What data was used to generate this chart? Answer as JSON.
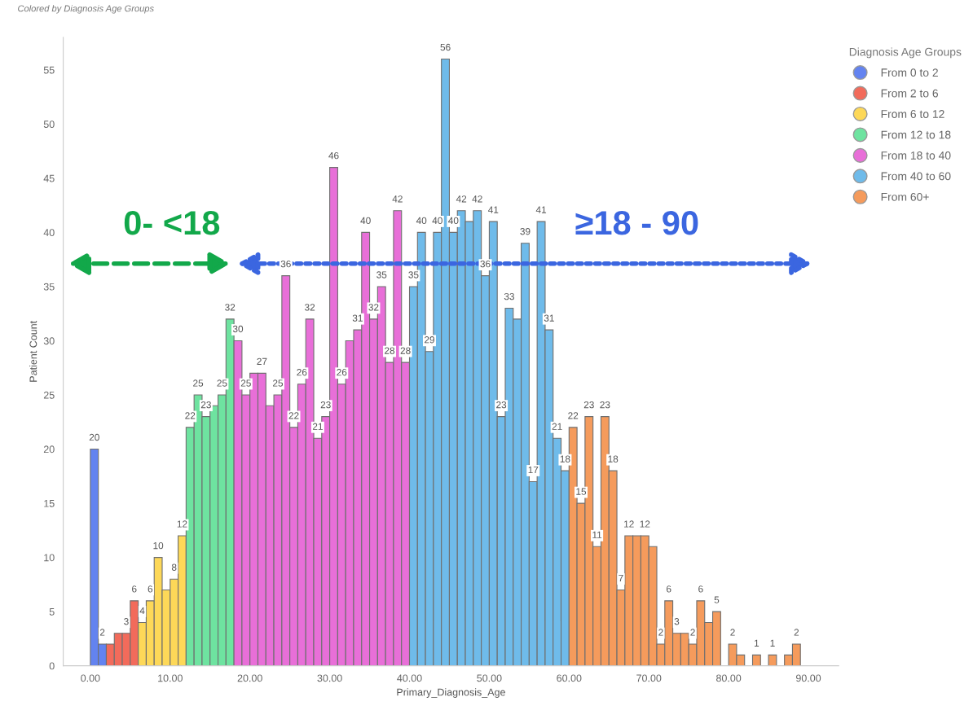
{
  "chart_data": {
    "type": "histogram",
    "subtitle": "Colored by Diagnosis Age Groups",
    "xlabel": "Primary_Diagnosis_Age",
    "ylabel": "Patient Count",
    "legend_title": "Diagnosis Age Groups",
    "bins": [
      0,
      1,
      2,
      3,
      4,
      5,
      6,
      7,
      8,
      9,
      10,
      11,
      12,
      13,
      14,
      15,
      16,
      17,
      18,
      19,
      20,
      21,
      22,
      23,
      24,
      25,
      26,
      27,
      28,
      29,
      30,
      31,
      32,
      33,
      34,
      35,
      36,
      37,
      38,
      39,
      40,
      41,
      42,
      43,
      44,
      45,
      46,
      47,
      48,
      49,
      50,
      51,
      52,
      53,
      54,
      55,
      56,
      57,
      58,
      59,
      60,
      61,
      62,
      63,
      64,
      65,
      66,
      67,
      68,
      69,
      70,
      71,
      72,
      73,
      74,
      75,
      76,
      77,
      78,
      79,
      80,
      81,
      82,
      83,
      84,
      85,
      86,
      87,
      88,
      89
    ],
    "series": [
      {
        "name": "From 0 to 2",
        "color": "#6383f0",
        "values": [
          20,
          2,
          null,
          null,
          null,
          null,
          null,
          null,
          null,
          null,
          null,
          null,
          null,
          null,
          null,
          null,
          null,
          null,
          null,
          null,
          null,
          null,
          null,
          null,
          null,
          null,
          null,
          null,
          null,
          null,
          null,
          null,
          null,
          null,
          null,
          null,
          null,
          null,
          null,
          null,
          null,
          null,
          null,
          null,
          null,
          null,
          null,
          null,
          null,
          null,
          null,
          null,
          null,
          null,
          null,
          null,
          null,
          null,
          null,
          null,
          null,
          null,
          null,
          null,
          null,
          null,
          null,
          null,
          null,
          null,
          null,
          null,
          null,
          null,
          null,
          null,
          null,
          null,
          null,
          null,
          null,
          null,
          null,
          null,
          null,
          null,
          null,
          null,
          null
        ],
        "value_labels": [
          "20",
          "2",
          null,
          null,
          null,
          null,
          null,
          null,
          null,
          null,
          null,
          null,
          null,
          null,
          null,
          null,
          null,
          null,
          null,
          null,
          null,
          null,
          null,
          null,
          null,
          null,
          null,
          null,
          null,
          null,
          null,
          null,
          null,
          null,
          null,
          null,
          null,
          null,
          null,
          null,
          null,
          null,
          null,
          null,
          null,
          null,
          null,
          null,
          null,
          null,
          null,
          null,
          null,
          null,
          null,
          null,
          null,
          null,
          null,
          null,
          null,
          null,
          null,
          null,
          null,
          null,
          null,
          null,
          null,
          null,
          null,
          null,
          null,
          null,
          null,
          null,
          null,
          null,
          null,
          null,
          null,
          null,
          null,
          null,
          null,
          null,
          null,
          null,
          null
        ]
      },
      {
        "name": "From 2 to 6",
        "color": "#f26b5b",
        "values": [
          null,
          null,
          2,
          3,
          3,
          6,
          null,
          null,
          null,
          null,
          null,
          null,
          null,
          null,
          null,
          null,
          null,
          null,
          null,
          null,
          null,
          null,
          null,
          null,
          null,
          null,
          null,
          null,
          null,
          null,
          null,
          null,
          null,
          null,
          null,
          null,
          null,
          null,
          null,
          null,
          null,
          null,
          null,
          null,
          null,
          null,
          null,
          null,
          null,
          null,
          null,
          null,
          null,
          null,
          null,
          null,
          null,
          null,
          null,
          null,
          null,
          null,
          null,
          null,
          null,
          null,
          null,
          null,
          null,
          null,
          null,
          null,
          null,
          null,
          null,
          null,
          null,
          null,
          null,
          null,
          null,
          null,
          null,
          null,
          null,
          null,
          null,
          null,
          null
        ],
        "value_labels": [
          null,
          null,
          null,
          null,
          "3",
          "6",
          null,
          null,
          null,
          null,
          null,
          null,
          null,
          null,
          null,
          null,
          null,
          null,
          null,
          null,
          null,
          null,
          null,
          null,
          null,
          null,
          null,
          null,
          null,
          null,
          null,
          null,
          null,
          null,
          null,
          null,
          null,
          null,
          null,
          null,
          null,
          null,
          null,
          null,
          null,
          null,
          null,
          null,
          null,
          null,
          null,
          null,
          null,
          null,
          null,
          null,
          null,
          null,
          null,
          null,
          null,
          null,
          null,
          null,
          null,
          null,
          null,
          null,
          null,
          null,
          null,
          null,
          null,
          null,
          null,
          null,
          null,
          null,
          null,
          null,
          null,
          null,
          null,
          null,
          null,
          null,
          null,
          null,
          null
        ]
      },
      {
        "name": "From 6 to 12",
        "color": "#fdd858",
        "values": [
          null,
          null,
          null,
          null,
          null,
          null,
          4,
          6,
          10,
          7,
          8,
          12,
          null,
          null,
          null,
          null,
          null,
          null,
          null,
          null,
          null,
          null,
          null,
          null,
          null,
          null,
          null,
          null,
          null,
          null,
          null,
          null,
          null,
          null,
          null,
          null,
          null,
          null,
          null,
          null,
          null,
          null,
          null,
          null,
          null,
          null,
          null,
          null,
          null,
          null,
          null,
          null,
          null,
          null,
          null,
          null,
          null,
          null,
          null,
          null,
          null,
          null,
          null,
          null,
          null,
          null,
          null,
          null,
          null,
          null,
          null,
          null,
          null,
          null,
          null,
          null,
          null,
          null,
          null,
          null,
          null,
          null,
          null,
          null,
          null,
          null,
          null,
          null,
          null
        ],
        "value_labels": [
          null,
          null,
          null,
          null,
          null,
          null,
          "4",
          "6",
          "10",
          null,
          "8",
          "12",
          null,
          null,
          null,
          null,
          null,
          null,
          null,
          null,
          null,
          null,
          null,
          null,
          null,
          null,
          null,
          null,
          null,
          null,
          null,
          null,
          null,
          null,
          null,
          null,
          null,
          null,
          null,
          null,
          null,
          null,
          null,
          null,
          null,
          null,
          null,
          null,
          null,
          null,
          null,
          null,
          null,
          null,
          null,
          null,
          null,
          null,
          null,
          null,
          null,
          null,
          null,
          null,
          null,
          null,
          null,
          null,
          null,
          null,
          null,
          null,
          null,
          null,
          null,
          null,
          null,
          null,
          null,
          null,
          null,
          null,
          null,
          null,
          null,
          null,
          null,
          null,
          null
        ]
      },
      {
        "name": "From 12 to 18",
        "color": "#6ee3a0",
        "values": [
          null,
          null,
          null,
          null,
          null,
          null,
          null,
          null,
          null,
          null,
          null,
          null,
          22,
          25,
          23,
          24,
          25,
          32,
          null,
          null,
          null,
          null,
          null,
          null,
          null,
          null,
          null,
          null,
          null,
          null,
          null,
          null,
          null,
          null,
          null,
          null,
          null,
          null,
          null,
          null,
          null,
          null,
          null,
          null,
          null,
          null,
          null,
          null,
          null,
          null,
          null,
          null,
          null,
          null,
          null,
          null,
          null,
          null,
          null,
          null,
          null,
          null,
          null,
          null,
          null,
          null,
          null,
          null,
          null,
          null,
          null,
          null,
          null,
          null,
          null,
          null,
          null,
          null,
          null,
          null,
          null,
          null,
          null,
          null,
          null,
          null,
          null,
          null,
          null
        ],
        "value_labels": [
          null,
          null,
          null,
          null,
          null,
          null,
          null,
          null,
          null,
          null,
          null,
          null,
          "22",
          "25",
          "23",
          null,
          "25",
          "32",
          null,
          null,
          null,
          null,
          null,
          null,
          null,
          null,
          null,
          null,
          null,
          null,
          null,
          null,
          null,
          null,
          null,
          null,
          null,
          null,
          null,
          null,
          null,
          null,
          null,
          null,
          null,
          null,
          null,
          null,
          null,
          null,
          null,
          null,
          null,
          null,
          null,
          null,
          null,
          null,
          null,
          null,
          null,
          null,
          null,
          null,
          null,
          null,
          null,
          null,
          null,
          null,
          null,
          null,
          null,
          null,
          null,
          null,
          null,
          null,
          null,
          null,
          null,
          null,
          null,
          null,
          null,
          null,
          null,
          null,
          null
        ]
      },
      {
        "name": "From 18 to 40",
        "color": "#e86fd8",
        "values": [
          null,
          null,
          null,
          null,
          null,
          null,
          null,
          null,
          null,
          null,
          null,
          null,
          null,
          null,
          null,
          null,
          null,
          null,
          30,
          25,
          27,
          27,
          24,
          25,
          36,
          22,
          26,
          32,
          21,
          23,
          46,
          26,
          30,
          31,
          40,
          32,
          35,
          28,
          42,
          28,
          null,
          null,
          null,
          null,
          null,
          null,
          null,
          null,
          null,
          null,
          null,
          null,
          null,
          null,
          null,
          null,
          null,
          null,
          null,
          null,
          null,
          null,
          null,
          null,
          null,
          null,
          null,
          null,
          null,
          null,
          null,
          null,
          null,
          null,
          null,
          null,
          null,
          null,
          null,
          null,
          null,
          null,
          null,
          null,
          null,
          null,
          null,
          null,
          null
        ],
        "value_labels": [
          null,
          null,
          null,
          null,
          null,
          null,
          null,
          null,
          null,
          null,
          null,
          null,
          null,
          null,
          null,
          null,
          null,
          null,
          "30",
          "25",
          null,
          "27",
          null,
          "25",
          "36",
          "22",
          "26",
          "32",
          "21",
          "23",
          "46",
          "26",
          null,
          "31",
          "40",
          "32",
          "35",
          "28",
          "42",
          "28",
          null,
          null,
          null,
          null,
          null,
          null,
          null,
          null,
          null,
          null,
          null,
          null,
          null,
          null,
          null,
          null,
          null,
          null,
          null,
          null,
          null,
          null,
          null,
          null,
          null,
          null,
          null,
          null,
          null,
          null,
          null,
          null,
          null,
          null,
          null,
          null,
          null,
          null,
          null,
          null,
          null,
          null,
          null,
          null,
          null,
          null,
          null,
          null,
          null
        ]
      },
      {
        "name": "From 40 to 60",
        "color": "#6fbbea",
        "values": [
          null,
          null,
          null,
          null,
          null,
          null,
          null,
          null,
          null,
          null,
          null,
          null,
          null,
          null,
          null,
          null,
          null,
          null,
          null,
          null,
          null,
          null,
          null,
          null,
          null,
          null,
          null,
          null,
          null,
          null,
          null,
          null,
          null,
          null,
          null,
          null,
          null,
          null,
          null,
          null,
          35,
          40,
          29,
          40,
          56,
          40,
          42,
          41,
          42,
          36,
          41,
          23,
          33,
          32,
          39,
          17,
          41,
          31,
          21,
          18,
          null,
          null,
          null,
          null,
          null,
          null,
          null,
          null,
          null,
          null,
          null,
          null,
          null,
          null,
          null,
          null,
          null,
          null,
          null,
          null,
          null,
          null,
          null,
          null,
          null,
          null,
          null,
          null,
          null
        ],
        "value_labels": [
          null,
          null,
          null,
          null,
          null,
          null,
          null,
          null,
          null,
          null,
          null,
          null,
          null,
          null,
          null,
          null,
          null,
          null,
          null,
          null,
          null,
          null,
          null,
          null,
          null,
          null,
          null,
          null,
          null,
          null,
          null,
          null,
          null,
          null,
          null,
          null,
          null,
          null,
          null,
          null,
          "35",
          "40",
          "29",
          "40",
          "56",
          "40",
          "42",
          null,
          "42",
          "36",
          "41",
          "23",
          "33",
          null,
          "39",
          "17",
          "41",
          "31",
          "21",
          "18",
          null,
          null,
          null,
          null,
          null,
          null,
          null,
          null,
          null,
          null,
          null,
          null,
          null,
          null,
          null,
          null,
          null,
          null,
          null,
          null,
          null,
          null,
          null,
          null,
          null,
          null,
          null,
          null,
          null
        ]
      },
      {
        "name": "From 60+",
        "color": "#f59b5c",
        "values": [
          null,
          null,
          null,
          null,
          null,
          null,
          null,
          null,
          null,
          null,
          null,
          null,
          null,
          null,
          null,
          null,
          null,
          null,
          null,
          null,
          null,
          null,
          null,
          null,
          null,
          null,
          null,
          null,
          null,
          null,
          null,
          null,
          null,
          null,
          null,
          null,
          null,
          null,
          null,
          null,
          null,
          null,
          null,
          null,
          null,
          null,
          null,
          null,
          null,
          null,
          null,
          null,
          null,
          null,
          null,
          null,
          null,
          null,
          null,
          null,
          22,
          15,
          23,
          11,
          23,
          18,
          7,
          12,
          12,
          12,
          11,
          2,
          6,
          3,
          3,
          2,
          6,
          4,
          5,
          null,
          2,
          1,
          null,
          1,
          null,
          1,
          null,
          1,
          2
        ],
        "value_labels": [
          null,
          null,
          null,
          null,
          null,
          null,
          null,
          null,
          null,
          null,
          null,
          null,
          null,
          null,
          null,
          null,
          null,
          null,
          null,
          null,
          null,
          null,
          null,
          null,
          null,
          null,
          null,
          null,
          null,
          null,
          null,
          null,
          null,
          null,
          null,
          null,
          null,
          null,
          null,
          null,
          null,
          null,
          null,
          null,
          null,
          null,
          null,
          null,
          null,
          null,
          null,
          null,
          null,
          null,
          null,
          null,
          null,
          null,
          null,
          null,
          "22",
          "15",
          "23",
          "11",
          "23",
          "18",
          "7",
          "12",
          null,
          "12",
          null,
          "2",
          "6",
          "3",
          null,
          "2",
          "6",
          null,
          "5",
          null,
          "2",
          null,
          null,
          "1",
          null,
          "1",
          null,
          null,
          "2"
        ]
      }
    ],
    "annotations": [
      "0- <18",
      "≥18 - 90"
    ],
    "xlim": [
      -3.4,
      93.8
    ],
    "ylim": [
      0,
      58
    ],
    "xticks": [
      {
        "value": 0,
        "label": "0.00"
      },
      {
        "value": 10,
        "label": "10.00"
      },
      {
        "value": 20,
        "label": "20.00"
      },
      {
        "value": 30,
        "label": "30.00"
      },
      {
        "value": 40,
        "label": "40.00"
      },
      {
        "value": 50,
        "label": "50.00"
      },
      {
        "value": 60,
        "label": "60.00"
      },
      {
        "value": 70,
        "label": "70.00"
      },
      {
        "value": 80,
        "label": "80.00"
      },
      {
        "value": 90,
        "label": "90.00"
      }
    ],
    "yticks": [
      0,
      5,
      10,
      15,
      20,
      25,
      30,
      35,
      40,
      45,
      50,
      55
    ],
    "grid": false,
    "legend": "right"
  }
}
